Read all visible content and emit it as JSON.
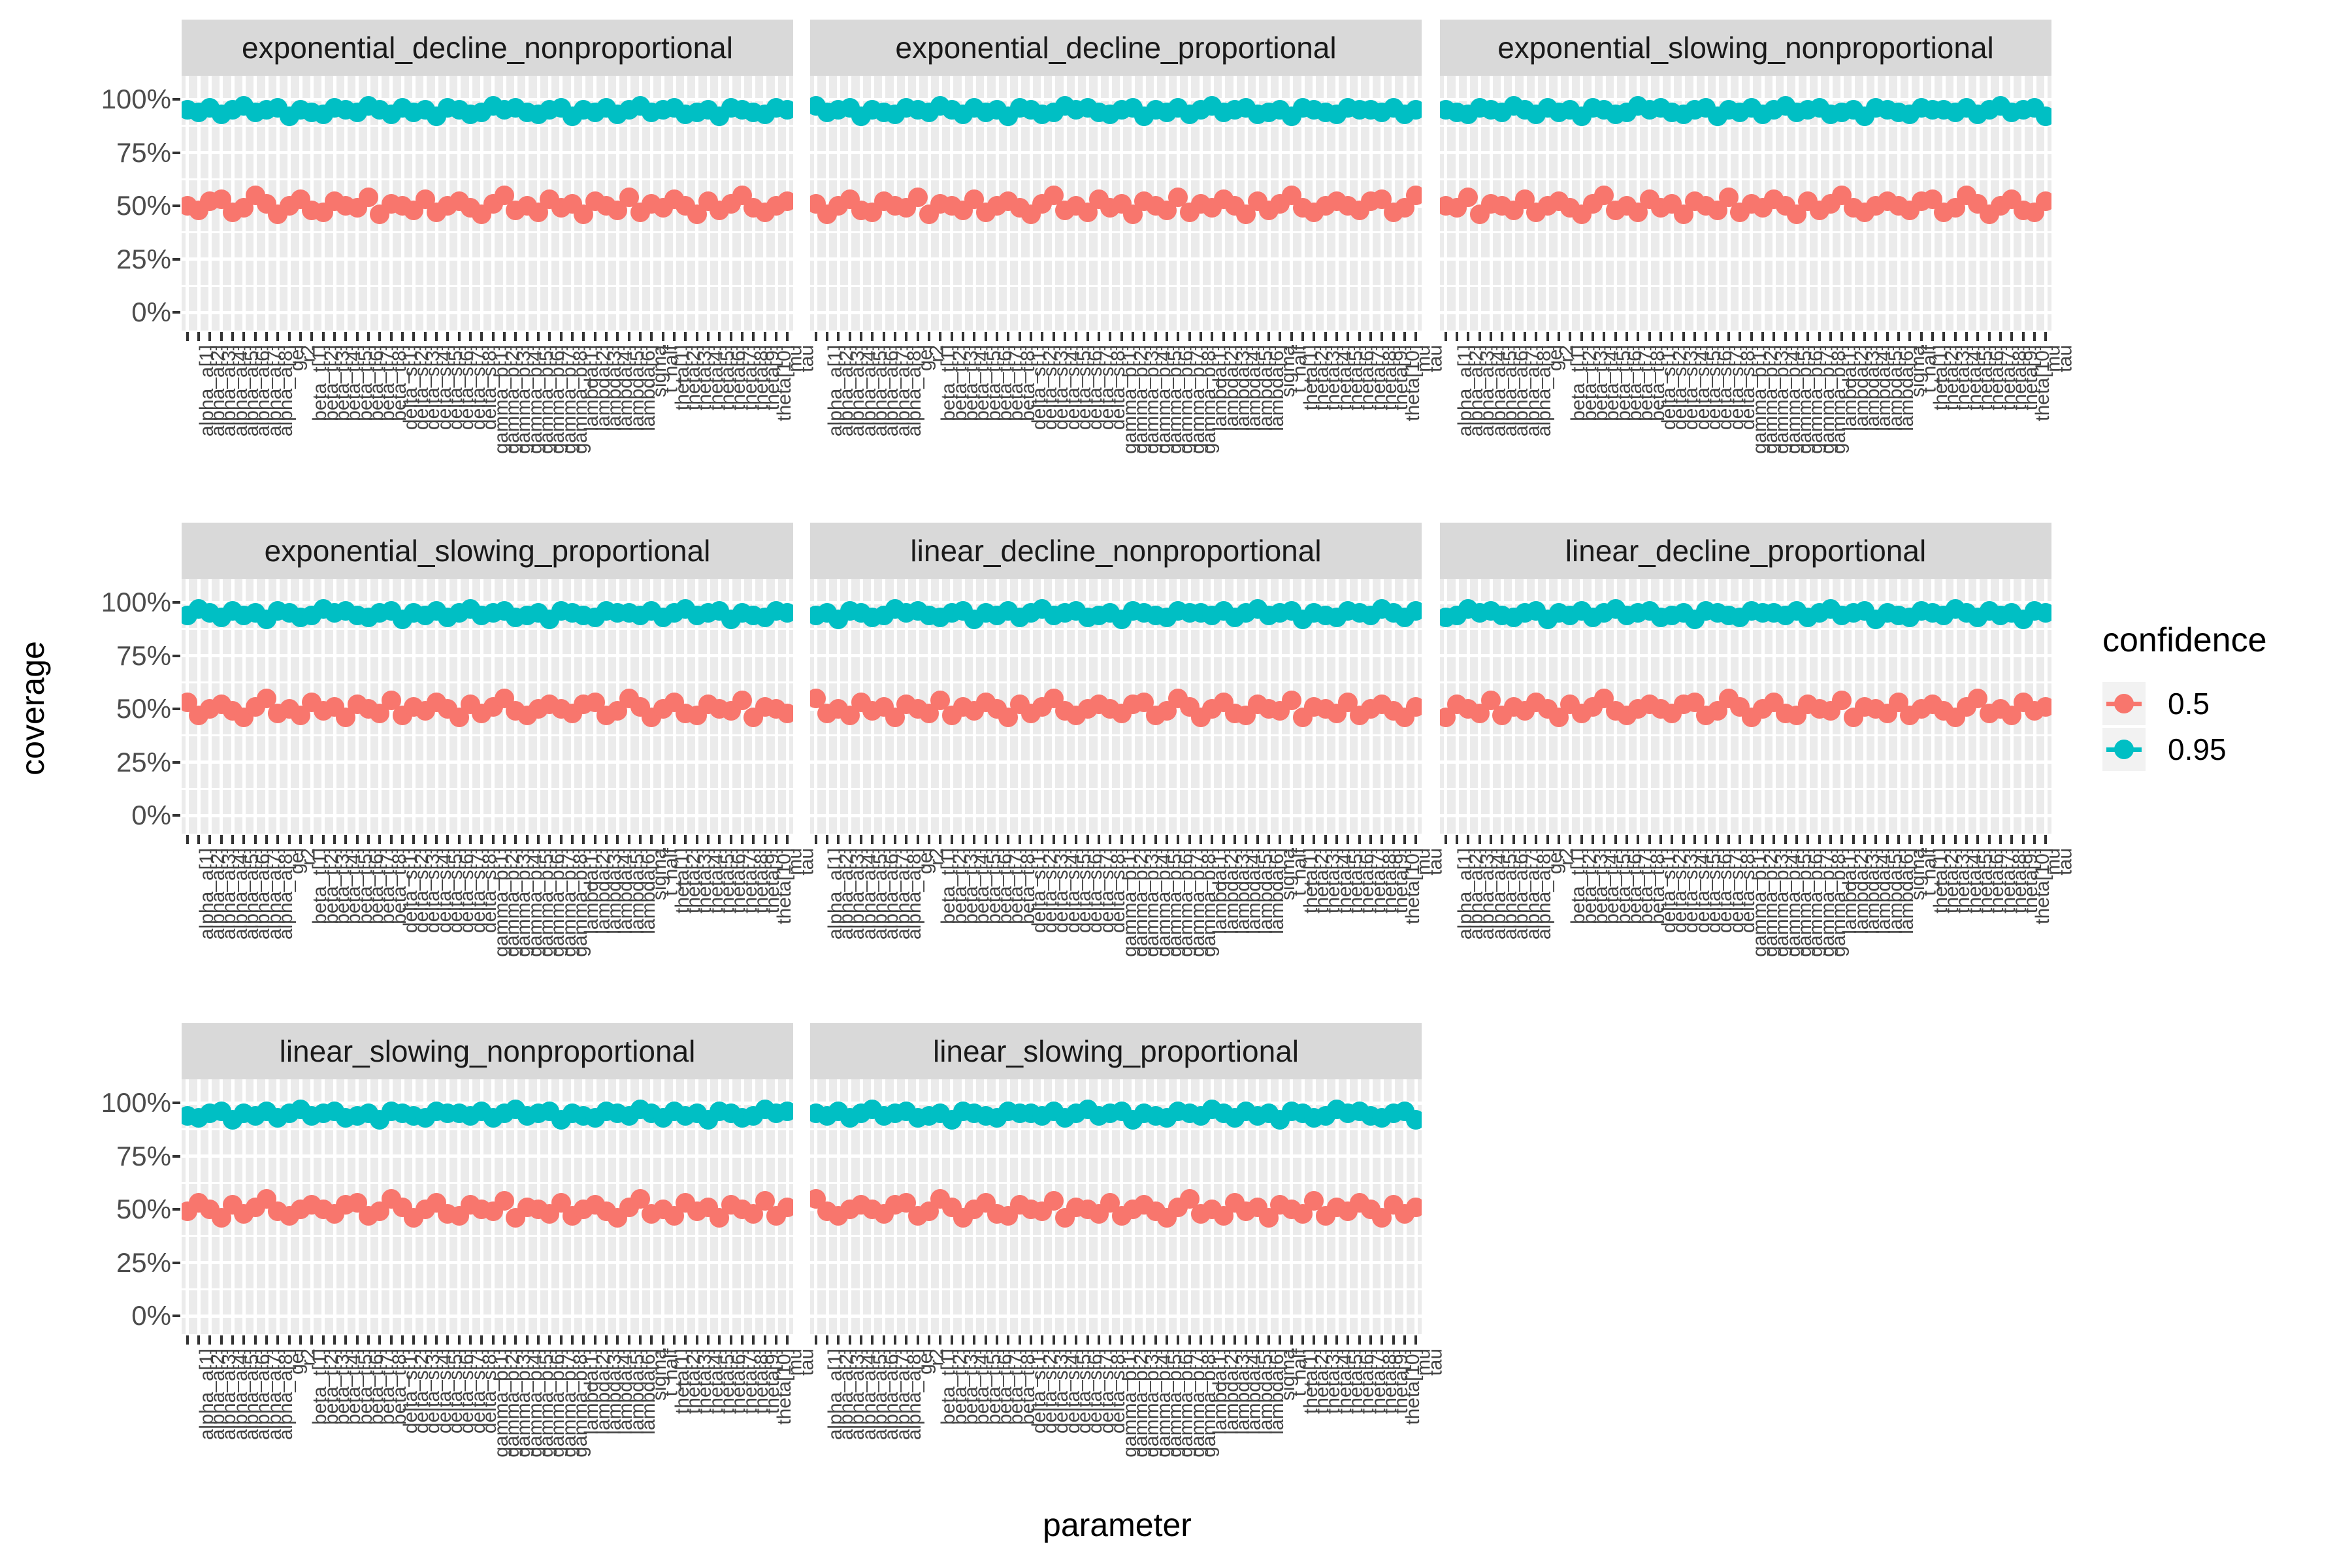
{
  "figure": {
    "y_axis_title": "coverage",
    "x_axis_title": "parameter",
    "y_tick_labels": [
      "100%",
      "75%",
      "50%",
      "25%",
      "0%"
    ],
    "colors": {
      "panel_background": "#EBEBEB",
      "strip_background": "#D9D9D9",
      "gridline": "#FFFFFF",
      "tick_text": "#4D4D4D",
      "confidence_0_5": "#F8766D",
      "confidence_0_95": "#00BFC4"
    }
  },
  "legend": {
    "title": "confidence",
    "entries": [
      {
        "label": "0.5",
        "color": "#F8766D"
      },
      {
        "label": "0.95",
        "color": "#00BFC4"
      }
    ]
  },
  "chart_data": {
    "type": "scatter",
    "title": "",
    "xlabel": "parameter",
    "ylabel": "coverage",
    "ylim": [
      0,
      100
    ],
    "ytick_percents": [
      100,
      75,
      50,
      25,
      0
    ],
    "grid": "on",
    "legend_position": "right",
    "legend_title": "confidence",
    "series_levels": [
      {
        "name": "0.5",
        "color": "#F8766D",
        "nominal_coverage_pct": 50
      },
      {
        "name": "0.95",
        "color": "#00BFC4",
        "nominal_coverage_pct": 95
      }
    ],
    "categories": [
      "alpha_a[1]",
      "alpha_a[2]",
      "alpha_a[3]",
      "alpha_a[4]",
      "alpha_a[5]",
      "alpha_a[6]",
      "alpha_a[7]",
      "alpha_a[8]",
      "gel",
      "r2",
      "beta_t[1]",
      "beta_t[2]",
      "beta_t[3]",
      "beta_t[4]",
      "beta_t[5]",
      "beta_t[6]",
      "beta_t[7]",
      "beta_t[8]",
      "delta_s[1]",
      "delta_s[2]",
      "delta_s[3]",
      "delta_s[4]",
      "delta_s[5]",
      "delta_s[6]",
      "delta_s[7]",
      "delta_s[8]",
      "gamma_b[1]",
      "gamma_b[2]",
      "gamma_b[3]",
      "gamma_b[4]",
      "gamma_b[5]",
      "gamma_b[6]",
      "gamma_b[7]",
      "gamma_b[8]",
      "lambda[1]",
      "lambda[2]",
      "lambda[3]",
      "lambda[4]",
      "lambda[5]",
      "lambda[6]",
      "sigma",
      "t_half",
      "theta[1]",
      "theta[2]",
      "theta[3]",
      "theta[4]",
      "theta[5]",
      "theta[6]",
      "theta[7]",
      "theta[8]",
      "theta[9]",
      "theta[10]",
      "mu",
      "tau"
    ],
    "facets": [
      {
        "title": "exponential_decline_nonproportional",
        "coverage_0_5": [
          50,
          48,
          52,
          53,
          47,
          49,
          55,
          51,
          46,
          50,
          53,
          48,
          47,
          52,
          50,
          49,
          54,
          46,
          51,
          50,
          48,
          53,
          47,
          50,
          52,
          49,
          46,
          51,
          55,
          48,
          50,
          47,
          53,
          49,
          51,
          46,
          52,
          50,
          48,
          54,
          47,
          51,
          49,
          53,
          50,
          46,
          52,
          48,
          51,
          55,
          49,
          47,
          50,
          52
        ],
        "coverage_0_95": [
          95,
          94,
          96,
          93,
          95,
          97,
          94,
          95,
          96,
          92,
          95,
          94,
          93,
          96,
          95,
          94,
          97,
          95,
          93,
          96,
          94,
          95,
          92,
          96,
          95,
          93,
          94,
          97,
          95,
          96,
          94,
          93,
          95,
          96,
          92,
          95,
          94,
          96,
          93,
          95,
          97,
          94,
          95,
          96,
          93,
          94,
          95,
          92,
          96,
          95,
          94,
          93,
          96,
          95
        ]
      },
      {
        "title": "exponential_decline_proportional",
        "coverage_0_5": [
          51,
          46,
          50,
          53,
          48,
          47,
          52,
          50,
          49,
          54,
          46,
          51,
          50,
          48,
          53,
          47,
          50,
          52,
          49,
          46,
          51,
          55,
          48,
          50,
          47,
          53,
          49,
          51,
          46,
          52,
          50,
          48,
          54,
          47,
          51,
          49,
          53,
          50,
          46,
          52,
          48,
          51,
          55,
          49,
          47,
          50,
          52,
          50,
          48,
          52,
          53,
          47,
          49,
          55
        ],
        "coverage_0_95": [
          97,
          94,
          95,
          96,
          92,
          95,
          94,
          93,
          96,
          95,
          94,
          97,
          95,
          93,
          96,
          94,
          95,
          92,
          96,
          95,
          93,
          94,
          97,
          95,
          96,
          94,
          93,
          95,
          96,
          92,
          95,
          94,
          96,
          93,
          95,
          97,
          94,
          95,
          96,
          93,
          94,
          95,
          92,
          96,
          95,
          94,
          93,
          96,
          95,
          95,
          94,
          96,
          93,
          95
        ]
      },
      {
        "title": "exponential_slowing_nonproportional",
        "coverage_0_5": [
          50,
          49,
          54,
          46,
          51,
          50,
          48,
          53,
          47,
          50,
          52,
          49,
          46,
          51,
          55,
          48,
          50,
          47,
          53,
          49,
          51,
          46,
          52,
          50,
          48,
          54,
          47,
          51,
          49,
          53,
          50,
          46,
          52,
          48,
          51,
          55,
          49,
          47,
          50,
          52,
          50,
          48,
          52,
          53,
          47,
          49,
          55,
          51,
          46,
          50,
          53,
          48,
          47,
          52
        ],
        "coverage_0_95": [
          95,
          94,
          93,
          96,
          95,
          94,
          97,
          95,
          93,
          96,
          94,
          95,
          92,
          96,
          95,
          93,
          94,
          97,
          95,
          96,
          94,
          93,
          95,
          96,
          92,
          95,
          94,
          96,
          93,
          95,
          97,
          94,
          95,
          96,
          93,
          94,
          95,
          92,
          96,
          95,
          94,
          93,
          96,
          95,
          95,
          94,
          96,
          93,
          95,
          97,
          94,
          95,
          96,
          92
        ]
      },
      {
        "title": "exponential_slowing_proportional",
        "coverage_0_5": [
          53,
          47,
          50,
          52,
          49,
          46,
          51,
          55,
          48,
          50,
          47,
          53,
          49,
          51,
          46,
          52,
          50,
          48,
          54,
          47,
          51,
          49,
          53,
          50,
          46,
          52,
          48,
          51,
          55,
          49,
          47,
          50,
          52,
          50,
          48,
          52,
          53,
          47,
          49,
          55,
          51,
          46,
          50,
          53,
          48,
          47,
          52,
          50,
          49,
          54,
          46,
          51,
          50,
          48
        ],
        "coverage_0_95": [
          94,
          97,
          95,
          93,
          96,
          94,
          95,
          92,
          96,
          95,
          93,
          94,
          97,
          95,
          96,
          94,
          93,
          95,
          96,
          92,
          95,
          94,
          96,
          93,
          95,
          97,
          94,
          95,
          96,
          93,
          94,
          95,
          92,
          96,
          95,
          94,
          93,
          96,
          95,
          95,
          94,
          96,
          93,
          95,
          97,
          94,
          95,
          96,
          92,
          95,
          94,
          93,
          96,
          95
        ]
      },
      {
        "title": "linear_decline_nonproportional",
        "coverage_0_5": [
          55,
          48,
          50,
          47,
          53,
          49,
          51,
          46,
          52,
          50,
          48,
          54,
          47,
          51,
          49,
          53,
          50,
          46,
          52,
          48,
          51,
          55,
          49,
          47,
          50,
          52,
          50,
          48,
          52,
          53,
          47,
          49,
          55,
          51,
          46,
          50,
          53,
          48,
          47,
          52,
          50,
          49,
          54,
          46,
          51,
          50,
          48,
          53,
          47,
          50,
          52,
          49,
          46,
          51
        ],
        "coverage_0_95": [
          94,
          95,
          92,
          96,
          95,
          93,
          94,
          97,
          95,
          96,
          94,
          93,
          95,
          96,
          92,
          95,
          94,
          96,
          93,
          95,
          97,
          94,
          95,
          96,
          93,
          94,
          95,
          92,
          96,
          95,
          94,
          93,
          96,
          95,
          95,
          94,
          96,
          93,
          95,
          97,
          94,
          95,
          96,
          92,
          95,
          94,
          93,
          96,
          95,
          94,
          97,
          95,
          93,
          96
        ]
      },
      {
        "title": "linear_decline_proportional",
        "coverage_0_5": [
          46,
          52,
          50,
          48,
          54,
          47,
          51,
          49,
          53,
          50,
          46,
          52,
          48,
          51,
          55,
          49,
          47,
          50,
          52,
          50,
          48,
          52,
          53,
          47,
          49,
          55,
          51,
          46,
          50,
          53,
          48,
          47,
          52,
          50,
          49,
          54,
          46,
          51,
          50,
          48,
          53,
          47,
          50,
          52,
          49,
          46,
          51,
          55,
          48,
          50,
          47,
          53,
          49,
          51
        ],
        "coverage_0_95": [
          93,
          94,
          97,
          95,
          96,
          94,
          93,
          95,
          96,
          92,
          95,
          94,
          96,
          93,
          95,
          97,
          94,
          95,
          96,
          93,
          94,
          95,
          92,
          96,
          95,
          94,
          93,
          96,
          95,
          95,
          94,
          96,
          93,
          95,
          97,
          94,
          95,
          96,
          92,
          95,
          94,
          93,
          96,
          95,
          94,
          97,
          95,
          93,
          96,
          94,
          95,
          92,
          96,
          95
        ]
      },
      {
        "title": "linear_slowing_nonproportional",
        "coverage_0_5": [
          49,
          53,
          50,
          46,
          52,
          48,
          51,
          55,
          49,
          47,
          50,
          52,
          50,
          48,
          52,
          53,
          47,
          49,
          55,
          51,
          46,
          50,
          53,
          48,
          47,
          52,
          50,
          49,
          54,
          46,
          51,
          50,
          48,
          53,
          47,
          50,
          52,
          49,
          46,
          51,
          55,
          48,
          50,
          47,
          53,
          49,
          51,
          46,
          52,
          50,
          48,
          54,
          47,
          51
        ],
        "coverage_0_95": [
          94,
          93,
          95,
          96,
          92,
          95,
          94,
          96,
          93,
          95,
          97,
          94,
          95,
          96,
          93,
          94,
          95,
          92,
          96,
          95,
          94,
          93,
          96,
          95,
          95,
          94,
          96,
          93,
          95,
          97,
          94,
          95,
          96,
          92,
          95,
          94,
          93,
          96,
          95,
          94,
          97,
          95,
          93,
          96,
          94,
          95,
          92,
          96,
          95,
          93,
          94,
          97,
          95,
          96
        ]
      },
      {
        "title": "linear_slowing_proportional",
        "coverage_0_5": [
          55,
          49,
          47,
          50,
          52,
          50,
          48,
          52,
          53,
          47,
          49,
          55,
          51,
          46,
          50,
          53,
          48,
          47,
          52,
          50,
          49,
          54,
          46,
          51,
          50,
          48,
          53,
          47,
          50,
          52,
          49,
          46,
          51,
          55,
          48,
          50,
          47,
          53,
          49,
          51,
          46,
          52,
          50,
          48,
          54,
          47,
          51,
          49,
          53,
          50,
          46,
          52,
          48,
          51
        ],
        "coverage_0_95": [
          95,
          94,
          96,
          93,
          95,
          97,
          94,
          95,
          96,
          93,
          94,
          95,
          92,
          96,
          95,
          94,
          93,
          96,
          95,
          95,
          94,
          96,
          93,
          95,
          97,
          94,
          95,
          96,
          92,
          95,
          94,
          93,
          96,
          95,
          94,
          97,
          95,
          93,
          96,
          94,
          95,
          92,
          96,
          95,
          93,
          94,
          97,
          95,
          96,
          94,
          93,
          95,
          96,
          92
        ]
      }
    ]
  }
}
